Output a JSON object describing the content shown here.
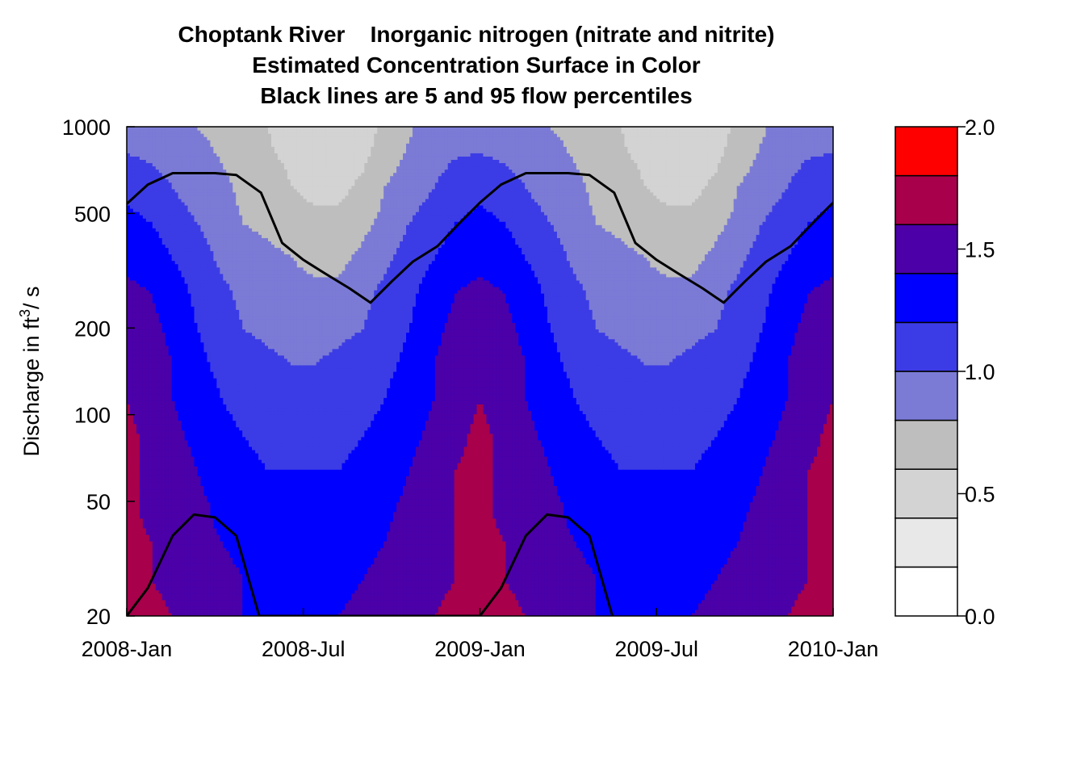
{
  "chart_data": {
    "type": "heatmap",
    "title_lines": [
      "Choptank River    Inorganic nitrogen (nitrate and nitrite)",
      "Estimated Concentration Surface in Color",
      "Black lines are 5 and 95 flow percentiles"
    ],
    "ylabel_main": "Discharge in ft",
    "ylabel_sup": "3",
    "ylabel_tail": "/ s",
    "x_tick_labels": [
      "2008-Jan",
      "2008-Jul",
      "2009-Jan",
      "2009-Jul",
      "2010-Jan"
    ],
    "x_ticks": [
      2008.0,
      2008.5,
      2009.0,
      2009.5,
      2010.0
    ],
    "xlim": [
      2008.0,
      2010.0
    ],
    "y_tick_labels": [
      "20",
      "50",
      "100",
      "200",
      "500",
      "1000"
    ],
    "y_ticks": [
      20,
      50,
      100,
      200,
      500,
      1000
    ],
    "ylim": [
      20,
      1000
    ],
    "y_scale": "log",
    "colorbar": {
      "tick_labels": [
        "0.0",
        "0.5",
        "1.0",
        "1.5",
        "2.0"
      ],
      "ticks": [
        0.0,
        0.5,
        1.0,
        1.5,
        2.0
      ],
      "levels": [
        0.0,
        0.2,
        0.4,
        0.6,
        0.8,
        1.0,
        1.2,
        1.4,
        1.6,
        1.8,
        2.0
      ],
      "colors": [
        "#ffffff",
        "#e8e8e8",
        "#d3d3d3",
        "#bebebe",
        "#7b7bd6",
        "#3c3ce6",
        "#0000ff",
        "#4b00a8",
        "#a8004b",
        "#ff0000"
      ]
    },
    "surface": {
      "x": [
        2008.0,
        2008.07,
        2008.13,
        2008.2,
        2008.27,
        2008.33,
        2008.4,
        2008.47,
        2008.53,
        2008.6,
        2008.67,
        2008.73,
        2008.8,
        2008.87,
        2008.93,
        2009.0,
        2009.07,
        2009.13,
        2009.2,
        2009.27,
        2009.33,
        2009.4,
        2009.47,
        2009.53,
        2009.6,
        2009.67,
        2009.73,
        2009.8,
        2009.87,
        2009.93,
        2010.0
      ],
      "y": [
        20,
        27,
        36,
        48,
        64,
        85,
        113,
        150,
        200,
        265,
        350,
        465,
        615,
        815,
        1000
      ],
      "values": [
        [
          1.7,
          1.65,
          1.6,
          1.5,
          1.45,
          1.4,
          1.4,
          1.4,
          1.4,
          1.4,
          1.45,
          1.5,
          1.55,
          1.6,
          1.65,
          1.7,
          1.65,
          1.6,
          1.5,
          1.45,
          1.4,
          1.4,
          1.4,
          1.4,
          1.4,
          1.45,
          1.5,
          1.55,
          1.6,
          1.65,
          1.7
        ],
        [
          1.65,
          1.6,
          1.55,
          1.5,
          1.45,
          1.4,
          1.35,
          1.35,
          1.35,
          1.35,
          1.4,
          1.45,
          1.5,
          1.55,
          1.6,
          1.65,
          1.6,
          1.55,
          1.5,
          1.45,
          1.4,
          1.35,
          1.35,
          1.35,
          1.35,
          1.4,
          1.45,
          1.5,
          1.55,
          1.6,
          1.65
        ],
        [
          1.65,
          1.6,
          1.5,
          1.45,
          1.4,
          1.35,
          1.3,
          1.3,
          1.3,
          1.3,
          1.35,
          1.4,
          1.5,
          1.55,
          1.6,
          1.65,
          1.6,
          1.5,
          1.45,
          1.4,
          1.35,
          1.3,
          1.3,
          1.3,
          1.3,
          1.35,
          1.4,
          1.5,
          1.55,
          1.6,
          1.65
        ],
        [
          1.65,
          1.55,
          1.5,
          1.45,
          1.35,
          1.3,
          1.25,
          1.25,
          1.25,
          1.25,
          1.3,
          1.35,
          1.45,
          1.55,
          1.6,
          1.65,
          1.55,
          1.5,
          1.45,
          1.35,
          1.3,
          1.25,
          1.25,
          1.25,
          1.25,
          1.3,
          1.35,
          1.45,
          1.55,
          1.6,
          1.65
        ],
        [
          1.65,
          1.55,
          1.5,
          1.4,
          1.3,
          1.25,
          1.2,
          1.2,
          1.2,
          1.2,
          1.25,
          1.3,
          1.4,
          1.5,
          1.6,
          1.65,
          1.55,
          1.5,
          1.4,
          1.3,
          1.25,
          1.2,
          1.2,
          1.2,
          1.2,
          1.25,
          1.3,
          1.4,
          1.5,
          1.6,
          1.65
        ],
        [
          1.65,
          1.55,
          1.45,
          1.35,
          1.25,
          1.2,
          1.15,
          1.15,
          1.15,
          1.15,
          1.2,
          1.25,
          1.35,
          1.45,
          1.55,
          1.65,
          1.55,
          1.45,
          1.35,
          1.25,
          1.2,
          1.15,
          1.15,
          1.15,
          1.15,
          1.2,
          1.25,
          1.35,
          1.45,
          1.55,
          1.65
        ],
        [
          1.6,
          1.5,
          1.4,
          1.3,
          1.2,
          1.15,
          1.1,
          1.1,
          1.1,
          1.1,
          1.15,
          1.2,
          1.3,
          1.4,
          1.5,
          1.6,
          1.5,
          1.4,
          1.3,
          1.2,
          1.15,
          1.1,
          1.1,
          1.1,
          1.1,
          1.15,
          1.2,
          1.3,
          1.4,
          1.5,
          1.6
        ],
        [
          1.6,
          1.5,
          1.4,
          1.25,
          1.15,
          1.1,
          1.05,
          1.0,
          1.0,
          1.05,
          1.1,
          1.15,
          1.25,
          1.4,
          1.5,
          1.6,
          1.5,
          1.4,
          1.25,
          1.15,
          1.1,
          1.05,
          1.0,
          1.0,
          1.05,
          1.1,
          1.15,
          1.25,
          1.4,
          1.5,
          1.6
        ],
        [
          1.55,
          1.45,
          1.35,
          1.2,
          1.1,
          1.0,
          0.95,
          0.9,
          0.9,
          0.95,
          1.0,
          1.1,
          1.2,
          1.35,
          1.45,
          1.55,
          1.45,
          1.35,
          1.2,
          1.1,
          1.0,
          0.95,
          0.9,
          0.9,
          0.95,
          1.0,
          1.1,
          1.2,
          1.35,
          1.45,
          1.55
        ],
        [
          1.45,
          1.4,
          1.3,
          1.15,
          1.05,
          0.95,
          0.9,
          0.85,
          0.85,
          0.85,
          0.95,
          1.05,
          1.15,
          1.3,
          1.4,
          1.45,
          1.4,
          1.3,
          1.15,
          1.05,
          0.95,
          0.9,
          0.85,
          0.85,
          0.85,
          0.95,
          1.05,
          1.15,
          1.3,
          1.4,
          1.45
        ],
        [
          1.35,
          1.3,
          1.2,
          1.1,
          0.95,
          0.9,
          0.85,
          0.8,
          0.75,
          0.75,
          0.85,
          0.95,
          1.1,
          1.2,
          1.3,
          1.35,
          1.3,
          1.2,
          1.1,
          0.95,
          0.9,
          0.85,
          0.8,
          0.75,
          0.75,
          0.85,
          0.95,
          1.1,
          1.2,
          1.3,
          1.35
        ],
        [
          1.25,
          1.2,
          1.1,
          1.0,
          0.9,
          0.8,
          0.75,
          0.7,
          0.65,
          0.65,
          0.75,
          0.85,
          1.0,
          1.1,
          1.2,
          1.25,
          1.2,
          1.1,
          1.0,
          0.9,
          0.8,
          0.75,
          0.7,
          0.65,
          0.65,
          0.75,
          0.85,
          1.0,
          1.1,
          1.2,
          1.25
        ],
        [
          1.15,
          1.1,
          1.0,
          0.9,
          0.85,
          0.75,
          0.7,
          0.6,
          0.55,
          0.55,
          0.65,
          0.8,
          0.9,
          1.0,
          1.1,
          1.15,
          1.1,
          1.0,
          0.9,
          0.85,
          0.75,
          0.7,
          0.6,
          0.55,
          0.55,
          0.65,
          0.8,
          0.9,
          1.0,
          1.1,
          1.15
        ],
        [
          1.0,
          0.95,
          0.9,
          0.85,
          0.78,
          0.7,
          0.62,
          0.55,
          0.45,
          0.45,
          0.55,
          0.7,
          0.82,
          0.92,
          0.98,
          1.0,
          0.95,
          0.9,
          0.85,
          0.78,
          0.7,
          0.62,
          0.55,
          0.45,
          0.45,
          0.55,
          0.7,
          0.82,
          0.92,
          0.98,
          1.0
        ],
        [
          0.95,
          0.9,
          0.85,
          0.8,
          0.75,
          0.68,
          0.6,
          0.5,
          0.42,
          0.42,
          0.5,
          0.65,
          0.78,
          0.88,
          0.93,
          0.95,
          0.9,
          0.85,
          0.8,
          0.75,
          0.68,
          0.6,
          0.5,
          0.42,
          0.42,
          0.5,
          0.65,
          0.78,
          0.88,
          0.93,
          0.95
        ]
      ]
    },
    "flow_percentile_lines": [
      {
        "percentile": "95",
        "x": [
          2008.0,
          2008.06,
          2008.13,
          2008.19,
          2008.25,
          2008.31,
          2008.38,
          2008.44,
          2008.5,
          2008.56,
          2008.63,
          2008.69,
          2008.75,
          2008.81,
          2008.88,
          2008.94,
          2009.0,
          2009.06,
          2009.13,
          2009.19,
          2009.25,
          2009.31,
          2009.38,
          2009.44,
          2009.5,
          2009.56,
          2009.63,
          2009.69,
          2009.75,
          2009.81,
          2009.88,
          2009.94,
          2010.0
        ],
        "y": [
          540,
          630,
          690,
          690,
          690,
          680,
          590,
          395,
          345,
          310,
          275,
          245,
          290,
          340,
          385,
          460,
          545,
          630,
          690,
          690,
          690,
          680,
          590,
          395,
          345,
          310,
          275,
          245,
          290,
          340,
          385,
          460,
          545
        ]
      },
      {
        "percentile": "5",
        "x": [
          2008.0,
          2008.06,
          2008.13,
          2008.19,
          2008.25,
          2008.31,
          2008.375,
          2009.0,
          2009.06,
          2009.13,
          2009.19,
          2009.25,
          2009.31,
          2009.375
        ],
        "y": [
          20,
          25,
          38,
          45,
          44,
          38,
          20,
          20,
          25,
          38,
          45,
          44,
          38,
          20
        ]
      }
    ]
  }
}
